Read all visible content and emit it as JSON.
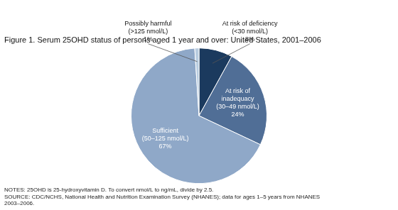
{
  "chart_data": {
    "type": "pie",
    "title": "Figure 1. Serum 25OHD status of persons aged 1 year and over: United States, 2001–2006",
    "categories": [
      "At risk of deficiency\n(<30 nmol/L)",
      "At risk of\ninadequacy\n(30–49 nmol/L)",
      "Sufficient\n(50–125 nmol/L)",
      "Possibly harmful\n(>125 nmol/L)"
    ],
    "values": [
      8,
      24,
      67,
      1
    ],
    "value_labels": [
      "8%",
      "24%",
      "67%",
      "1%"
    ],
    "colors": [
      "#1b3a5e",
      "#506e96",
      "#8fa8c8",
      "#b8cce0"
    ],
    "data_labels": true,
    "notes": [
      "NOTES: 25OHD is 25-hydroxyvitamin D. To convert nmol/L to ng/mL, divide by 2.5.",
      "SOURCE: CDC/NCHS, National Health and Nutrition Examination Survey (NHANES); data for ages 1–5 years from NHANES",
      "2003–2006."
    ]
  }
}
